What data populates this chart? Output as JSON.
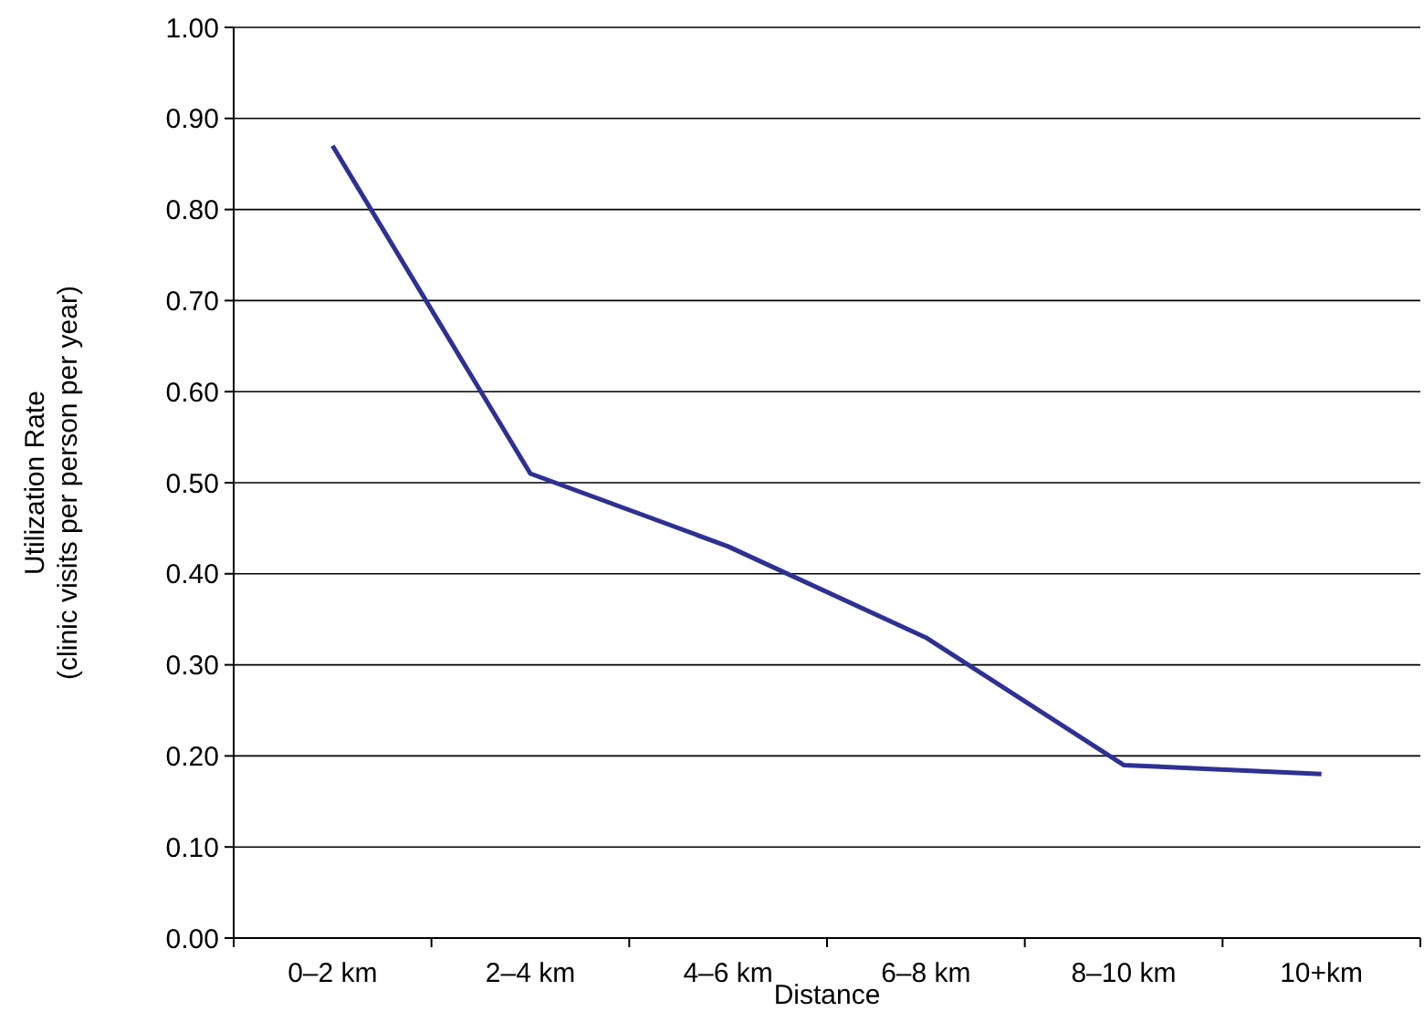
{
  "chart_data": {
    "type": "line",
    "xlabel": "Distance",
    "ylabel": "Utilization Rate\n(clinic visits per person per year)",
    "categories": [
      "0–2 km",
      "2–4 km",
      "4–6 km",
      "6–8 km",
      "8–10 km",
      "10+km"
    ],
    "series": [
      {
        "color": "#2e3192",
        "values": [
          0.87,
          0.51,
          0.43,
          0.33,
          0.19,
          0.18
        ]
      }
    ],
    "ylim": [
      0,
      1
    ],
    "yticks": [
      {
        "value": 0,
        "label": "0.00"
      },
      {
        "value": 0.1,
        "label": "0.10"
      },
      {
        "value": 0.2,
        "label": "0.20"
      },
      {
        "value": 0.3,
        "label": "0.30"
      },
      {
        "value": 0.4,
        "label": "0.40"
      },
      {
        "value": 0.5,
        "label": "0.50"
      },
      {
        "value": 0.6,
        "label": "0.60"
      },
      {
        "value": 0.7,
        "label": "0.70"
      },
      {
        "value": 0.8,
        "label": "0.80"
      },
      {
        "value": 0.9,
        "label": "0.90"
      },
      {
        "value": 1,
        "label": "1.00"
      }
    ],
    "grid": "y",
    "marker": "none",
    "line_style": "solid"
  }
}
